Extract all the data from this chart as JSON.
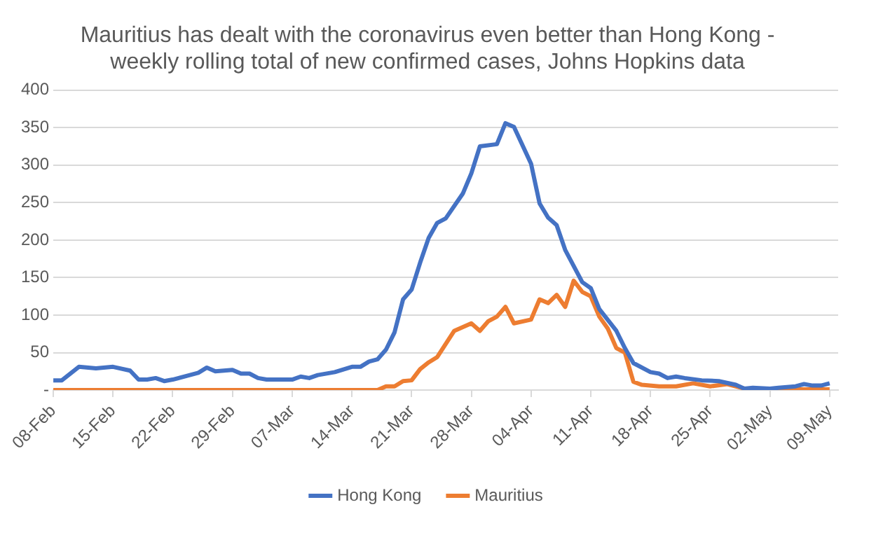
{
  "chart_data": {
    "type": "line",
    "title": "Mauritius has dealt with the coronavirus even better than Hong Kong - weekly rolling total of new confirmed cases, Johns Hopkins data",
    "xlim": [
      "--02-08",
      "--05-10"
    ],
    "xticks": [
      {
        "value": "--02-08",
        "label": "08-Feb"
      },
      {
        "value": "--02-15",
        "label": "15-Feb"
      },
      {
        "value": "--02-22",
        "label": "22-Feb"
      },
      {
        "value": "--02-29",
        "label": "29-Feb"
      },
      {
        "value": "--03-07",
        "label": "07-Mar"
      },
      {
        "value": "--03-14",
        "label": "14-Mar"
      },
      {
        "value": "--03-21",
        "label": "21-Mar"
      },
      {
        "value": "--03-28",
        "label": "28-Mar"
      },
      {
        "value": "--04-04",
        "label": "04-Apr"
      },
      {
        "value": "--04-11",
        "label": "11-Apr"
      },
      {
        "value": "--04-18",
        "label": "18-Apr"
      },
      {
        "value": "--04-25",
        "label": "25-Apr"
      },
      {
        "value": "--05-02",
        "label": "02-May"
      },
      {
        "value": "--05-09",
        "label": "09-May"
      }
    ],
    "ylim": [
      0,
      400
    ],
    "yticks": [
      {
        "value": 0,
        "label": "-"
      },
      50,
      100,
      150,
      200,
      250,
      300,
      350,
      400
    ],
    "grid": "y",
    "legend": "bottom",
    "series": [
      {
        "name": "Hong Kong",
        "color": "#4472c4",
        "x": [
          "--02-08",
          "--02-09",
          "--02-11",
          "--02-13",
          "--02-15",
          "--02-17",
          "--02-18",
          "--02-19",
          "--02-20",
          "--02-21",
          "--02-22",
          "--02-24",
          "--02-25",
          "--02-26",
          "--02-27",
          "--02-29",
          "--03-01",
          "--03-02",
          "--03-03",
          "--03-04",
          "--03-07",
          "--03-08",
          "--03-09",
          "--03-10",
          "--03-12",
          "--03-14",
          "--03-15",
          "--03-16",
          "--03-17",
          "--03-18",
          "--03-19",
          "--03-20",
          "--03-21",
          "--03-22",
          "--03-23",
          "--03-24",
          "--03-25",
          "--03-27",
          "--03-28",
          "--03-29",
          "--03-31",
          "--04-01",
          "--04-02",
          "--04-04",
          "--04-05",
          "--04-06",
          "--04-07",
          "--04-08",
          "--04-10",
          "--04-11",
          "--04-12",
          "--04-14",
          "--04-15",
          "--04-16",
          "--04-18",
          "--04-19",
          "--04-20",
          "--04-21",
          "--04-22",
          "--04-24",
          "--04-26",
          "--04-28",
          "--04-29",
          "--04-30",
          "--05-02",
          "--05-03",
          "--05-05",
          "--05-06",
          "--05-07",
          "--05-08",
          "--05-09"
        ],
        "values": [
          13,
          13,
          31,
          29,
          31,
          26,
          14,
          14,
          16,
          12,
          14,
          20,
          23,
          30,
          25,
          27,
          22,
          22,
          16,
          14,
          14,
          18,
          16,
          20,
          24,
          31,
          31,
          38,
          41,
          54,
          77,
          121,
          134,
          170,
          203,
          223,
          229,
          262,
          289,
          325,
          328,
          356,
          351,
          302,
          249,
          230,
          220,
          187,
          144,
          136,
          108,
          79,
          56,
          36,
          24,
          22,
          16,
          18,
          16,
          13,
          12,
          7,
          2,
          3,
          2,
          3,
          5,
          8,
          6,
          6,
          9
        ]
      },
      {
        "name": "Mauritius",
        "color": "#ed7d31",
        "x": [
          "--02-08",
          "--03-17",
          "--03-18",
          "--03-19",
          "--03-20",
          "--03-21",
          "--03-22",
          "--03-23",
          "--03-24",
          "--03-26",
          "--03-28",
          "--03-29",
          "--03-30",
          "--03-31",
          "--04-01",
          "--04-02",
          "--04-04",
          "--04-05",
          "--04-06",
          "--04-07",
          "--04-08",
          "--04-09",
          "--04-10",
          "--04-11",
          "--04-12",
          "--04-13",
          "--04-14",
          "--04-15",
          "--04-16",
          "--04-17",
          "--04-19",
          "--04-21",
          "--04-23",
          "--04-25",
          "--04-27",
          "--04-29",
          "--05-01",
          "--05-05",
          "--05-09"
        ],
        "values": [
          0,
          0,
          5,
          5,
          12,
          13,
          28,
          37,
          44,
          79,
          89,
          79,
          92,
          98,
          111,
          89,
          94,
          121,
          116,
          127,
          111,
          146,
          131,
          125,
          98,
          82,
          56,
          50,
          11,
          7,
          5,
          5,
          9,
          5,
          8,
          2,
          2,
          1,
          1
        ]
      }
    ]
  }
}
